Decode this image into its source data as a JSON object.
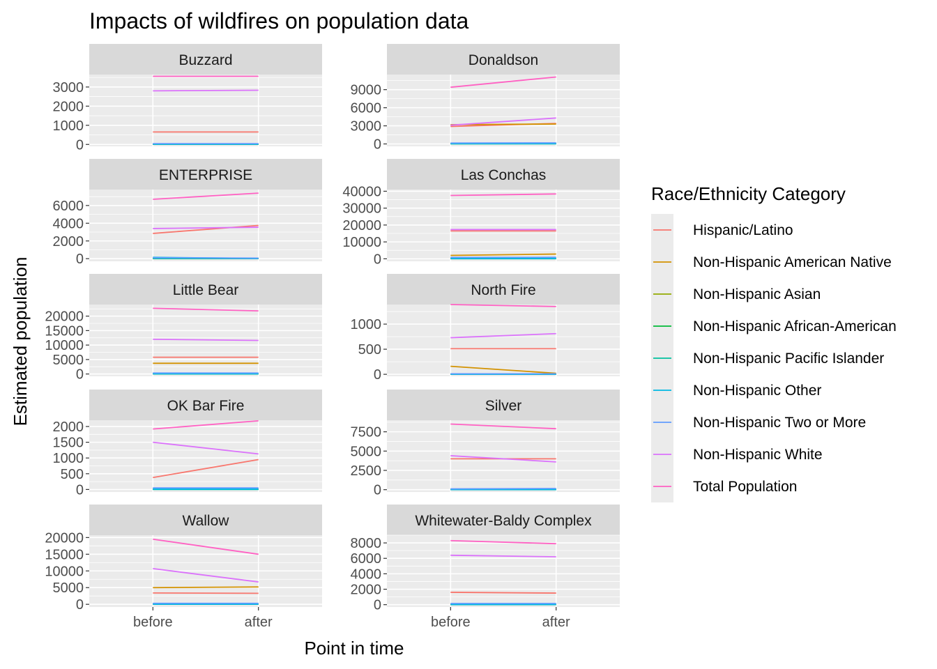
{
  "chart_data": {
    "type": "line",
    "title": "Impacts of wildfires on population data",
    "xlabel": "Point in time",
    "ylabel": "Estimated population",
    "x_categories": [
      "before",
      "after"
    ],
    "legend": {
      "title": "Race/Ethnicity Category",
      "placement": "right",
      "entries": [
        {
          "name": "Hispanic/Latino",
          "color": "#F8766D"
        },
        {
          "name": "Non-Hispanic American Native",
          "color": "#D39200"
        },
        {
          "name": "Non-Hispanic Asian",
          "color": "#93AA00"
        },
        {
          "name": "Non-Hispanic African-American",
          "color": "#00BA38"
        },
        {
          "name": "Non-Hispanic Pacific Islander",
          "color": "#00C19F"
        },
        {
          "name": "Non-Hispanic Other",
          "color": "#00B9E3"
        },
        {
          "name": "Non-Hispanic Two or More",
          "color": "#619CFF"
        },
        {
          "name": "Non-Hispanic White",
          "color": "#DB72FB"
        },
        {
          "name": "Total Population",
          "color": "#FF61C3"
        }
      ]
    },
    "grid": true,
    "panels": [
      {
        "name": "Buzzard",
        "ylim": [
          -100,
          3650
        ],
        "yticks": [
          0,
          1000,
          2000,
          3000
        ],
        "ytick_labels": [
          "0",
          "1000",
          "2000",
          "3000"
        ],
        "series": [
          {
            "name": "Hispanic/Latino",
            "values": [
              650,
              650
            ]
          },
          {
            "name": "Non-Hispanic American Native",
            "values": [
              10,
              10
            ]
          },
          {
            "name": "Non-Hispanic Asian",
            "values": [
              10,
              10
            ]
          },
          {
            "name": "Non-Hispanic African-American",
            "values": [
              10,
              10
            ]
          },
          {
            "name": "Non-Hispanic Pacific Islander",
            "values": [
              5,
              5
            ]
          },
          {
            "name": "Non-Hispanic Other",
            "values": [
              20,
              20
            ]
          },
          {
            "name": "Non-Hispanic Two or More",
            "values": [
              40,
              40
            ]
          },
          {
            "name": "Non-Hispanic White",
            "values": [
              2800,
              2830
            ]
          },
          {
            "name": "Total Population",
            "values": [
              3560,
              3560
            ]
          }
        ]
      },
      {
        "name": "Donaldson",
        "ylim": [
          -400,
          11500
        ],
        "yticks": [
          0,
          3000,
          6000,
          9000
        ],
        "ytick_labels": [
          "0",
          "3000",
          "6000",
          "9000"
        ],
        "series": [
          {
            "name": "Hispanic/Latino",
            "values": [
              2900,
              3400
            ]
          },
          {
            "name": "Non-Hispanic American Native",
            "values": [
              3200,
              3300
            ]
          },
          {
            "name": "Non-Hispanic Asian",
            "values": [
              50,
              60
            ]
          },
          {
            "name": "Non-Hispanic African-American",
            "values": [
              40,
              50
            ]
          },
          {
            "name": "Non-Hispanic Pacific Islander",
            "values": [
              20,
              20
            ]
          },
          {
            "name": "Non-Hispanic Other",
            "values": [
              60,
              60
            ]
          },
          {
            "name": "Non-Hispanic Two or More",
            "values": [
              150,
              180
            ]
          },
          {
            "name": "Non-Hispanic White",
            "values": [
              3100,
              4300
            ]
          },
          {
            "name": "Total Population",
            "values": [
              9400,
              11100
            ]
          }
        ]
      },
      {
        "name": "ENTERPRISE",
        "ylim": [
          -300,
          7800
        ],
        "yticks": [
          0,
          2000,
          4000,
          6000
        ],
        "ytick_labels": [
          "0",
          "2000",
          "4000",
          "6000"
        ],
        "series": [
          {
            "name": "Hispanic/Latino",
            "values": [
              2850,
              3750
            ]
          },
          {
            "name": "Non-Hispanic American Native",
            "values": [
              30,
              30
            ]
          },
          {
            "name": "Non-Hispanic Asian",
            "values": [
              40,
              40
            ]
          },
          {
            "name": "Non-Hispanic African-American",
            "values": [
              30,
              20
            ]
          },
          {
            "name": "Non-Hispanic Pacific Islander",
            "values": [
              10,
              10
            ]
          },
          {
            "name": "Non-Hispanic Other",
            "values": [
              150,
              30
            ]
          },
          {
            "name": "Non-Hispanic Two or More",
            "values": [
              100,
              60
            ]
          },
          {
            "name": "Non-Hispanic White",
            "values": [
              3400,
              3550
            ]
          },
          {
            "name": "Total Population",
            "values": [
              6700,
              7400
            ]
          }
        ]
      },
      {
        "name": "Las Conchas",
        "ylim": [
          -1500,
          41000
        ],
        "yticks": [
          0,
          10000,
          20000,
          30000,
          40000
        ],
        "ytick_labels": [
          "0",
          "10000",
          "20000",
          "30000",
          "40000"
        ],
        "series": [
          {
            "name": "Hispanic/Latino",
            "values": [
              16500,
              16500
            ]
          },
          {
            "name": "Non-Hispanic American Native",
            "values": [
              2000,
              2800
            ]
          },
          {
            "name": "Non-Hispanic Asian",
            "values": [
              400,
              450
            ]
          },
          {
            "name": "Non-Hispanic African-American",
            "values": [
              300,
              300
            ]
          },
          {
            "name": "Non-Hispanic Pacific Islander",
            "values": [
              50,
              50
            ]
          },
          {
            "name": "Non-Hispanic Other",
            "values": [
              200,
              200
            ]
          },
          {
            "name": "Non-Hispanic Two or More",
            "values": [
              800,
              900
            ]
          },
          {
            "name": "Non-Hispanic White",
            "values": [
              17300,
              17300
            ]
          },
          {
            "name": "Total Population",
            "values": [
              37500,
              38400
            ]
          }
        ]
      },
      {
        "name": "Little Bear",
        "ylim": [
          -800,
          24000
        ],
        "yticks": [
          0,
          5000,
          10000,
          15000,
          20000
        ],
        "ytick_labels": [
          "0",
          "5000",
          "10000",
          "15000",
          "20000"
        ],
        "series": [
          {
            "name": "Hispanic/Latino",
            "values": [
              5800,
              5800
            ]
          },
          {
            "name": "Non-Hispanic American Native",
            "values": [
              3700,
              3700
            ]
          },
          {
            "name": "Non-Hispanic Asian",
            "values": [
              100,
              100
            ]
          },
          {
            "name": "Non-Hispanic African-American",
            "values": [
              150,
              150
            ]
          },
          {
            "name": "Non-Hispanic Pacific Islander",
            "values": [
              20,
              20
            ]
          },
          {
            "name": "Non-Hispanic Other",
            "values": [
              100,
              100
            ]
          },
          {
            "name": "Non-Hispanic Two or More",
            "values": [
              350,
              350
            ]
          },
          {
            "name": "Non-Hispanic White",
            "values": [
              12000,
              11600
            ]
          },
          {
            "name": "Total Population",
            "values": [
              22700,
              21800
            ]
          }
        ]
      },
      {
        "name": "North Fire",
        "ylim": [
          -40,
          1390
        ],
        "yticks": [
          0,
          500,
          1000
        ],
        "ytick_labels": [
          "0",
          "500",
          "1000"
        ],
        "series": [
          {
            "name": "Hispanic/Latino",
            "values": [
              510,
              510
            ]
          },
          {
            "name": "Non-Hispanic American Native",
            "values": [
              160,
              20
            ]
          },
          {
            "name": "Non-Hispanic Asian",
            "values": [
              3,
              3
            ]
          },
          {
            "name": "Non-Hispanic African-American",
            "values": [
              3,
              3
            ]
          },
          {
            "name": "Non-Hispanic Pacific Islander",
            "values": [
              0,
              0
            ]
          },
          {
            "name": "Non-Hispanic Other",
            "values": [
              2,
              2
            ]
          },
          {
            "name": "Non-Hispanic Two or More",
            "values": [
              10,
              10
            ]
          },
          {
            "name": "Non-Hispanic White",
            "values": [
              730,
              810
            ]
          },
          {
            "name": "Total Population",
            "values": [
              1390,
              1350
            ]
          }
        ]
      },
      {
        "name": "OK Bar Fire",
        "ylim": [
          -80,
          2200
        ],
        "yticks": [
          0,
          500,
          1000,
          1500,
          2000
        ],
        "ytick_labels": [
          "0",
          "500",
          "1000",
          "1500",
          "2000"
        ],
        "series": [
          {
            "name": "Hispanic/Latino",
            "values": [
              380,
              950
            ]
          },
          {
            "name": "Non-Hispanic American Native",
            "values": [
              20,
              20
            ]
          },
          {
            "name": "Non-Hispanic Asian",
            "values": [
              10,
              10
            ]
          },
          {
            "name": "Non-Hispanic African-American",
            "values": [
              5,
              5
            ]
          },
          {
            "name": "Non-Hispanic Pacific Islander",
            "values": [
              0,
              0
            ]
          },
          {
            "name": "Non-Hispanic Other",
            "values": [
              10,
              10
            ]
          },
          {
            "name": "Non-Hispanic Two or More",
            "values": [
              50,
              50
            ]
          },
          {
            "name": "Non-Hispanic White",
            "values": [
              1500,
              1130
            ]
          },
          {
            "name": "Total Population",
            "values": [
              1920,
              2180
            ]
          }
        ]
      },
      {
        "name": "Silver",
        "ylim": [
          -300,
          9000
        ],
        "yticks": [
          0,
          2500,
          5000,
          7500
        ],
        "ytick_labels": [
          "0",
          "2500",
          "5000",
          "7500"
        ],
        "series": [
          {
            "name": "Hispanic/Latino",
            "values": [
              4000,
              4000
            ]
          },
          {
            "name": "Non-Hispanic American Native",
            "values": [
              40,
              40
            ]
          },
          {
            "name": "Non-Hispanic Asian",
            "values": [
              30,
              30
            ]
          },
          {
            "name": "Non-Hispanic African-American",
            "values": [
              30,
              30
            ]
          },
          {
            "name": "Non-Hispanic Pacific Islander",
            "values": [
              5,
              5
            ]
          },
          {
            "name": "Non-Hispanic Other",
            "values": [
              20,
              20
            ]
          },
          {
            "name": "Non-Hispanic Two or More",
            "values": [
              100,
              150
            ]
          },
          {
            "name": "Non-Hispanic White",
            "values": [
              4400,
              3600
            ]
          },
          {
            "name": "Total Population",
            "values": [
              8500,
              7900
            ]
          }
        ]
      },
      {
        "name": "Wallow",
        "ylim": [
          -800,
          20700
        ],
        "yticks": [
          0,
          5000,
          10000,
          15000,
          20000
        ],
        "ytick_labels": [
          "0",
          "5000",
          "10000",
          "15000",
          "20000"
        ],
        "series": [
          {
            "name": "Hispanic/Latino",
            "values": [
              3400,
              3300
            ]
          },
          {
            "name": "Non-Hispanic American Native",
            "values": [
              5000,
              5200
            ]
          },
          {
            "name": "Non-Hispanic Asian",
            "values": [
              100,
              100
            ]
          },
          {
            "name": "Non-Hispanic African-American",
            "values": [
              100,
              100
            ]
          },
          {
            "name": "Non-Hispanic Pacific Islander",
            "values": [
              20,
              20
            ]
          },
          {
            "name": "Non-Hispanic Other",
            "values": [
              50,
              50
            ]
          },
          {
            "name": "Non-Hispanic Two or More",
            "values": [
              300,
              300
            ]
          },
          {
            "name": "Non-Hispanic White",
            "values": [
              10700,
              6700
            ]
          },
          {
            "name": "Total Population",
            "values": [
              19500,
              15000
            ]
          }
        ]
      },
      {
        "name": "Whitewater-Baldy Complex",
        "ylim": [
          -300,
          9000
        ],
        "yticks": [
          0,
          2000,
          4000,
          6000,
          8000
        ],
        "ytick_labels": [
          "0",
          "2000",
          "4000",
          "6000",
          "8000"
        ],
        "series": [
          {
            "name": "Hispanic/Latino",
            "values": [
              1600,
              1500
            ]
          },
          {
            "name": "Non-Hispanic American Native",
            "values": [
              60,
              60
            ]
          },
          {
            "name": "Non-Hispanic Asian",
            "values": [
              40,
              40
            ]
          },
          {
            "name": "Non-Hispanic African-American",
            "values": [
              30,
              30
            ]
          },
          {
            "name": "Non-Hispanic Pacific Islander",
            "values": [
              5,
              5
            ]
          },
          {
            "name": "Non-Hispanic Other",
            "values": [
              30,
              30
            ]
          },
          {
            "name": "Non-Hispanic Two or More",
            "values": [
              150,
              150
            ]
          },
          {
            "name": "Non-Hispanic White",
            "values": [
              6400,
              6200
            ]
          },
          {
            "name": "Total Population",
            "values": [
              8300,
              7900
            ]
          }
        ]
      }
    ]
  }
}
